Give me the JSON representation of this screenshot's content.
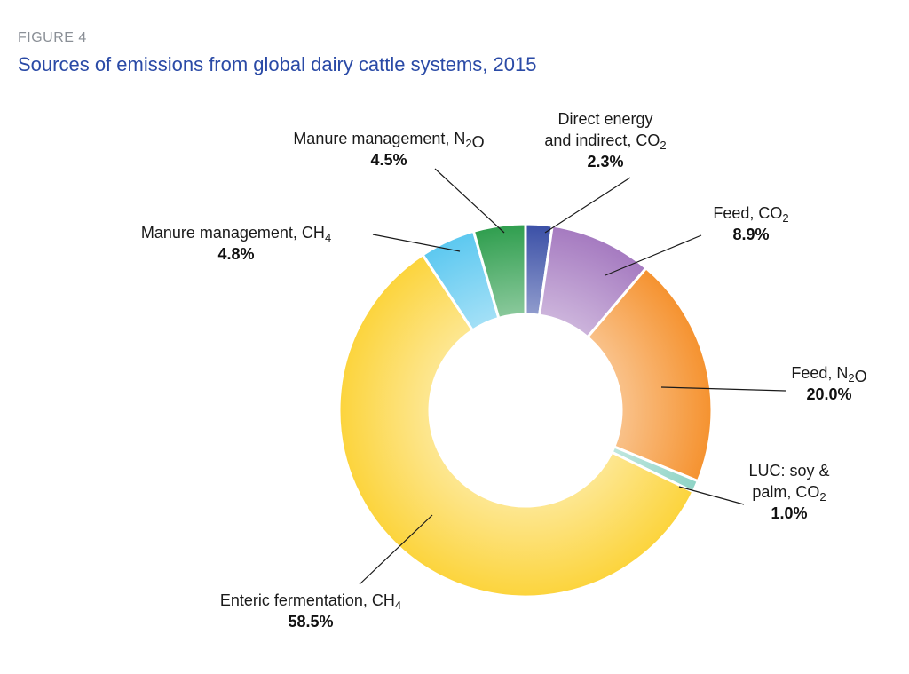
{
  "figure": {
    "label": "FIGURE 4",
    "title": "Sources of emissions from global dairy cattle systems, 2015"
  },
  "chart_data": {
    "type": "pie",
    "subtype": "donut",
    "start_angle_deg": 0,
    "direction": "clockwise",
    "slices": [
      {
        "key": "direct_energy",
        "lines": [
          [
            {
              "t": "Direct energy"
            }
          ],
          [
            {
              "t": "and indirect, CO"
            },
            {
              "t": "2",
              "sub": true
            }
          ]
        ],
        "value": 2.3,
        "display": "2.3%",
        "color": "#3a4fa6"
      },
      {
        "key": "feed_co2",
        "lines": [
          [
            {
              "t": "Feed, CO"
            },
            {
              "t": "2",
              "sub": true
            }
          ]
        ],
        "value": 8.9,
        "display": "8.9%",
        "color": "#a57ac0"
      },
      {
        "key": "feed_n2o",
        "lines": [
          [
            {
              "t": "Feed, N"
            },
            {
              "t": "2",
              "sub": true
            },
            {
              "t": "O"
            }
          ]
        ],
        "value": 20.0,
        "display": "20.0%",
        "color": "#f5922f"
      },
      {
        "key": "luc",
        "lines": [
          [
            {
              "t": "LUC: soy &"
            }
          ],
          [
            {
              "t": "palm, CO"
            },
            {
              "t": "2",
              "sub": true
            }
          ]
        ],
        "value": 1.0,
        "display": "1.0%",
        "color": "#8fd4c6"
      },
      {
        "key": "enteric",
        "lines": [
          [
            {
              "t": "Enteric fermentation, CH"
            },
            {
              "t": "4",
              "sub": true
            }
          ]
        ],
        "value": 58.5,
        "display": "58.5%",
        "color": "#fcd43c"
      },
      {
        "key": "manure_ch4",
        "lines": [
          [
            {
              "t": "Manure management, CH"
            },
            {
              "t": "4",
              "sub": true
            }
          ]
        ],
        "value": 4.8,
        "display": "4.8%",
        "color": "#5cc8f0"
      },
      {
        "key": "manure_n2o",
        "lines": [
          [
            {
              "t": "Manure management, N"
            },
            {
              "t": "2",
              "sub": true
            },
            {
              "t": "O"
            }
          ]
        ],
        "value": 4.5,
        "display": "4.5%",
        "color": "#2f9e4e"
      }
    ]
  }
}
